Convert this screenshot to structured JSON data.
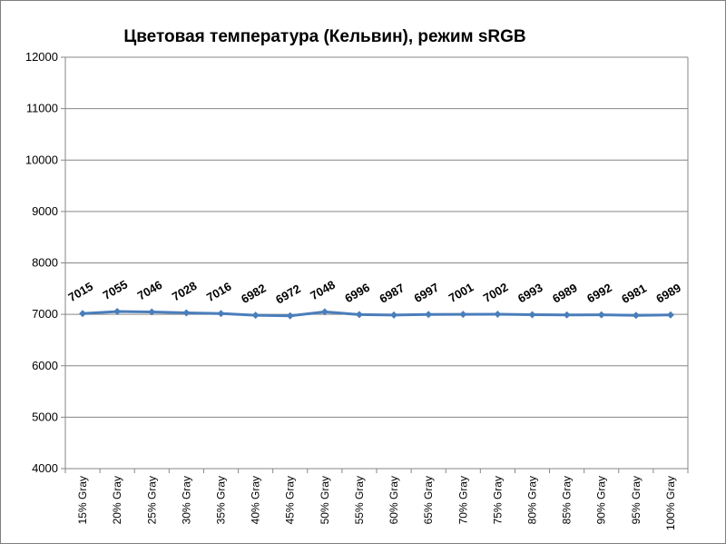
{
  "chart_data": {
    "type": "line",
    "title": "Цветовая температура (Кельвин), режим sRGB",
    "xlabel": "",
    "ylabel": "",
    "categories": [
      "15% Gray",
      "20% Gray",
      "25% Gray",
      "30% Gray",
      "35% Gray",
      "40% Gray",
      "45% Gray",
      "50% Gray",
      "55% Gray",
      "60% Gray",
      "65% Gray",
      "70% Gray",
      "75% Gray",
      "80% Gray",
      "85% Gray",
      "90% Gray",
      "95% Gray",
      "100% Gray"
    ],
    "series": [
      {
        "values": [
          7015,
          7055,
          7046,
          7028,
          7016,
          6982,
          6972,
          7048,
          6996,
          6987,
          6997,
          7001,
          7002,
          6993,
          6989,
          6992,
          6981,
          6989
        ]
      }
    ],
    "ylim": [
      4000,
      12000
    ],
    "yticks": [
      4000,
      5000,
      6000,
      7000,
      8000,
      9000,
      10000,
      11000,
      12000
    ],
    "grid": true,
    "legend": "none",
    "data_labels": true,
    "colors": {
      "line": "#4a7ebb",
      "grid": "#868686",
      "axis": "#868686"
    }
  }
}
